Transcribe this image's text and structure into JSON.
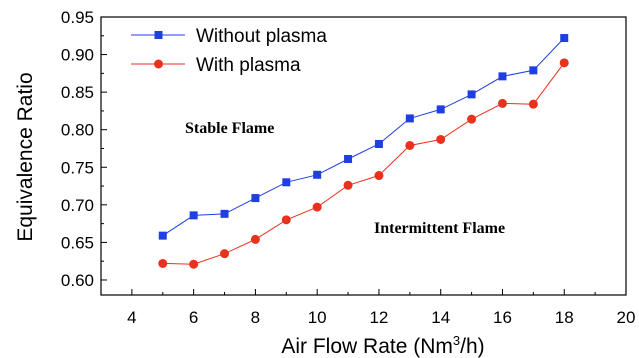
{
  "chart_data": {
    "type": "line",
    "xlabel_main": "Air Flow Rate (Nm",
    "xlabel_sup": "3",
    "xlabel_tail": "/h)",
    "ylabel": "Equivalence Ratio",
    "xlim": [
      3,
      20
    ],
    "ylim": [
      0.58,
      0.95
    ],
    "xticks": [
      "4",
      "6",
      "8",
      "10",
      "12",
      "14",
      "16",
      "18",
      "20"
    ],
    "yticks": [
      "0.60",
      "0.65",
      "0.70",
      "0.75",
      "0.80",
      "0.85",
      "0.90",
      "0.95"
    ],
    "x": [
      5,
      6,
      7,
      8,
      9,
      10,
      11,
      12,
      13,
      14,
      15,
      16,
      17,
      18
    ],
    "series": [
      {
        "name": "Without plasma",
        "color": "#1f3fe0",
        "marker": "square",
        "values": [
          0.659,
          0.686,
          0.688,
          0.709,
          0.73,
          0.74,
          0.761,
          0.781,
          0.815,
          0.827,
          0.847,
          0.871,
          0.879,
          0.922
        ]
      },
      {
        "name": "With plasma",
        "color": "#e8321e",
        "marker": "circle",
        "values": [
          0.622,
          0.621,
          0.635,
          0.654,
          0.68,
          0.697,
          0.726,
          0.739,
          0.779,
          0.787,
          0.814,
          0.835,
          0.834,
          0.889
        ]
      }
    ],
    "annotations": [
      "Stable Flame",
      "Intermittent Flame"
    ],
    "grid": false,
    "legend_position": "top-left"
  }
}
